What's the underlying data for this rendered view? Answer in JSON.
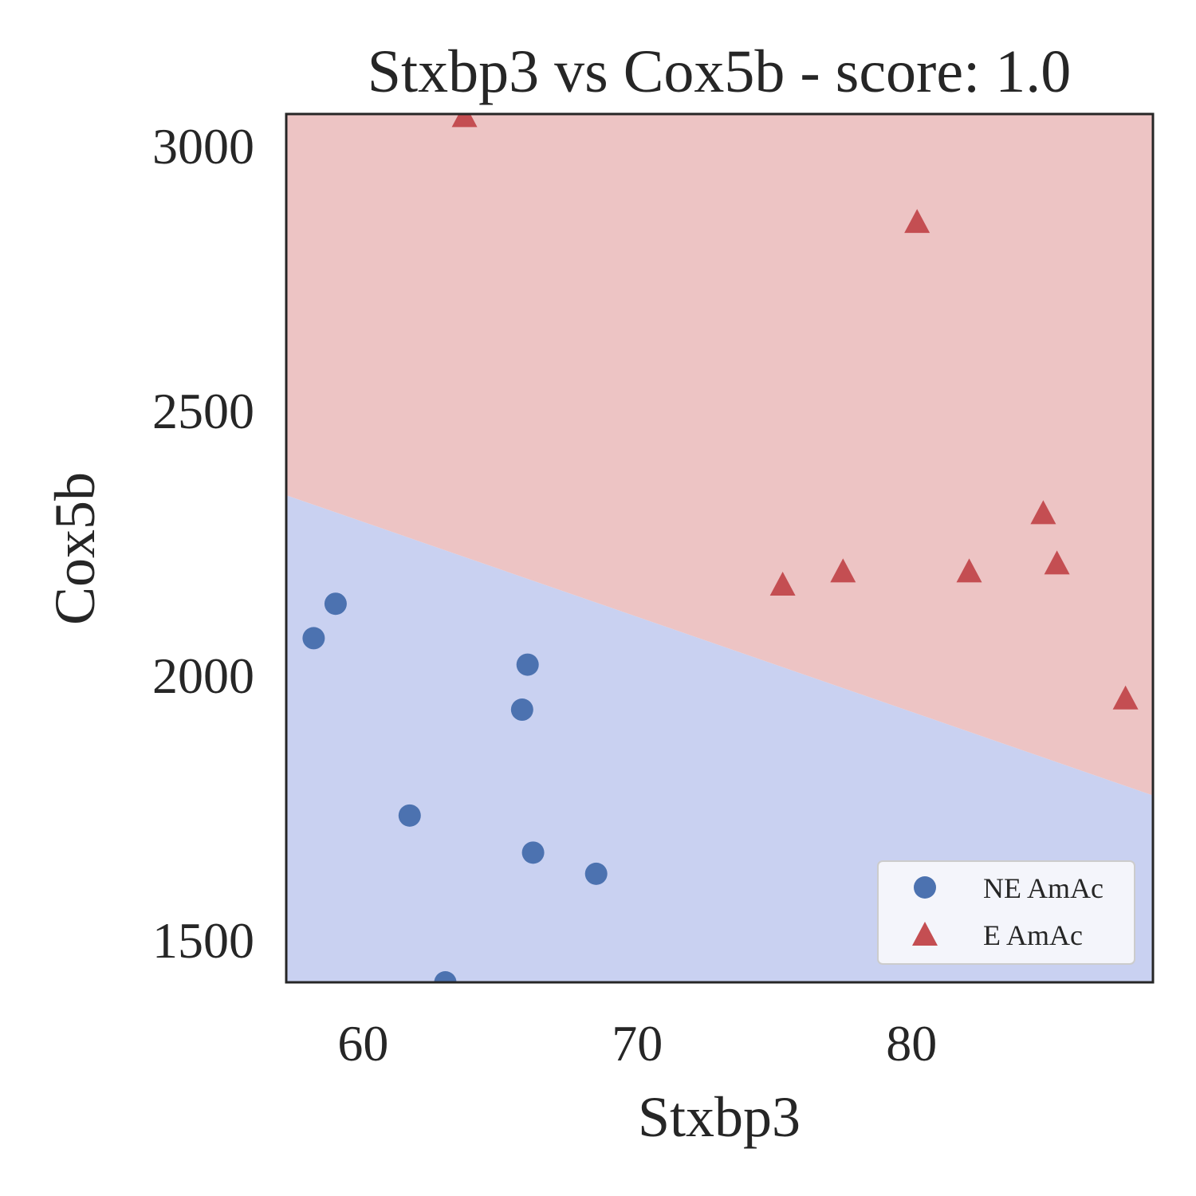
{
  "chart_data": {
    "type": "scatter",
    "title": "Stxbp3 vs Cox5b - score: 1.0",
    "xlabel": "Stxbp3",
    "ylabel": "Cox5b",
    "xlim": [
      57.2,
      88.8
    ],
    "ylim": [
      1420,
      3060
    ],
    "xticks": [
      60,
      70,
      80
    ],
    "yticks": [
      1500,
      2000,
      2500,
      3000
    ],
    "grid": false,
    "legend_position": "lower-right",
    "decision_boundary": {
      "x": [
        57.2,
        88.8
      ],
      "y": [
        2340,
        1773
      ],
      "colors": {
        "below": "#c9d1f1",
        "above": "#edc4c4"
      }
    },
    "series": [
      {
        "name": "NE AmAc",
        "marker": "circle",
        "color": "#4c72b0",
        "points": [
          {
            "x": 58.2,
            "y": 2070
          },
          {
            "x": 59.0,
            "y": 2135
          },
          {
            "x": 61.7,
            "y": 1735
          },
          {
            "x": 63.0,
            "y": 1420
          },
          {
            "x": 65.8,
            "y": 1935
          },
          {
            "x": 66.0,
            "y": 2020
          },
          {
            "x": 66.2,
            "y": 1665
          },
          {
            "x": 68.5,
            "y": 1625
          }
        ]
      },
      {
        "name": "E AmAc",
        "marker": "triangle",
        "color": "#c44e52",
        "points": [
          {
            "x": 63.7,
            "y": 3055
          },
          {
            "x": 75.3,
            "y": 2170
          },
          {
            "x": 77.5,
            "y": 2195
          },
          {
            "x": 80.2,
            "y": 2855
          },
          {
            "x": 82.1,
            "y": 2195
          },
          {
            "x": 84.8,
            "y": 2305
          },
          {
            "x": 85.3,
            "y": 2210
          },
          {
            "x": 87.8,
            "y": 1955
          }
        ]
      }
    ]
  }
}
